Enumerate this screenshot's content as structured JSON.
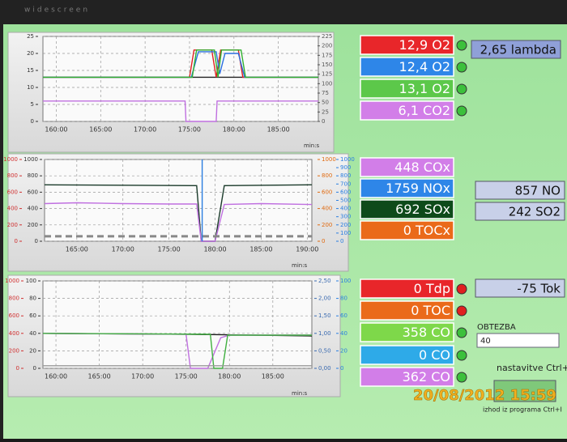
{
  "bezel_label": "widescreen",
  "charts": [
    {
      "x_label": "min:s",
      "xlim": [
        158.5,
        189.5
      ],
      "xticks": [
        {
          "value": 160,
          "label": "160:00"
        },
        {
          "value": 165,
          "label": "165:00"
        },
        {
          "value": 170,
          "label": "170:00"
        },
        {
          "value": 175,
          "label": "175:00"
        },
        {
          "value": 180,
          "label": "180:00"
        },
        {
          "value": 185,
          "label": "185:00"
        }
      ],
      "axes": [
        {
          "color": "#333333",
          "lim": [
            0,
            25
          ],
          "ticks": [
            0,
            5,
            10,
            15,
            20,
            25
          ]
        },
        {
          "color": "#555555",
          "lim": [
            0,
            225
          ],
          "ticks": [
            0,
            25,
            50,
            75,
            100,
            125,
            150,
            175,
            200,
            225
          ]
        }
      ],
      "series": [
        {
          "color": "#222222",
          "axis": 0,
          "x": [
            158.5,
            189.5
          ],
          "values": [
            13,
            13
          ]
        },
        {
          "color": "#e02020",
          "axis": 0,
          "x": [
            158.5,
            175,
            175.5,
            177.5,
            178,
            178.5,
            180.5,
            181,
            189.5
          ],
          "values": [
            13,
            13,
            21,
            21,
            13,
            21,
            21,
            13,
            13
          ]
        },
        {
          "color": "#2a6ee0",
          "axis": 0,
          "x": [
            158.5,
            175.2,
            176,
            178,
            178.4,
            179,
            180.5,
            181.2,
            189.5
          ],
          "values": [
            13,
            13,
            20.5,
            20.5,
            14,
            20,
            20,
            13,
            13
          ]
        },
        {
          "color": "#30b030",
          "axis": 0,
          "x": [
            158.5,
            175.3,
            175.8,
            177.8,
            178.2,
            178.6,
            180.8,
            181.3,
            189.5
          ],
          "values": [
            13,
            13,
            21,
            21,
            13,
            21,
            21,
            13,
            13
          ]
        },
        {
          "color": "#c070e0",
          "axis": 0,
          "x": [
            158.5,
            174.5,
            174.6,
            178,
            178.1,
            189.5
          ],
          "values": [
            6,
            6,
            0,
            0,
            6,
            6
          ]
        }
      ]
    },
    {
      "x_label": "min:s",
      "xlim": [
        161.5,
        190.5
      ],
      "xticks": [
        {
          "value": 165,
          "label": "165:00"
        },
        {
          "value": 170,
          "label": "170:00"
        },
        {
          "value": 175,
          "label": "175:00"
        },
        {
          "value": 180,
          "label": "180:00"
        },
        {
          "value": 185,
          "label": "185:00"
        },
        {
          "value": 190,
          "label": "190:00"
        }
      ],
      "axes": [
        {
          "color": "#d03030",
          "lim": [
            0,
            1000
          ],
          "ticks": [
            0,
            200,
            400,
            600,
            800,
            1000
          ]
        },
        {
          "color": "#333333",
          "lim": [
            0,
            1000
          ],
          "ticks": [
            0,
            200,
            400,
            600,
            800,
            1000
          ]
        },
        {
          "color": "#e06a10",
          "lim": [
            0,
            1000
          ],
          "ticks": [
            0,
            200,
            400,
            600,
            800,
            1000
          ]
        },
        {
          "color": "#2a7ee0",
          "lim": [
            0,
            1000
          ],
          "ticks": [
            0,
            100,
            200,
            300,
            400,
            500,
            600,
            700,
            800,
            900,
            1000
          ]
        }
      ],
      "series": [
        {
          "color": "#1a3a2a",
          "axis": 1,
          "x": [
            161.5,
            178,
            178.5,
            180,
            181,
            190.5
          ],
          "values": [
            690,
            680,
            0,
            0,
            680,
            690
          ]
        },
        {
          "color": "#c070e0",
          "axis": 1,
          "x": [
            161.5,
            165,
            170,
            175,
            178,
            178.5,
            180,
            181,
            185,
            190.5
          ],
          "values": [
            460,
            470,
            460,
            455,
            455,
            0,
            0,
            450,
            460,
            450
          ]
        },
        {
          "color": "#888888",
          "axis": 1,
          "dashed": true,
          "x": [
            161.5,
            190.5
          ],
          "values": [
            60,
            60
          ]
        },
        {
          "color": "#2a7ee0",
          "axis": 3,
          "x": [
            178.6,
            178.6
          ],
          "values": [
            0,
            1000
          ]
        }
      ]
    },
    {
      "x_label": "min:s",
      "xlim": [
        158.5,
        189.5
      ],
      "xticks": [
        {
          "value": 160,
          "label": "160:00"
        },
        {
          "value": 165,
          "label": "165:00"
        },
        {
          "value": 170,
          "label": "170:00"
        },
        {
          "value": 175,
          "label": "175:00"
        },
        {
          "value": 180,
          "label": "180:00"
        },
        {
          "value": 185,
          "label": "185:00"
        }
      ],
      "axes": [
        {
          "color": "#d03030",
          "lim": [
            0,
            1000
          ],
          "ticks": [
            0,
            200,
            400,
            600,
            800,
            1000
          ]
        },
        {
          "color": "#333333",
          "lim": [
            0,
            100
          ],
          "ticks": [
            0,
            20,
            40,
            60,
            80,
            100
          ]
        },
        {
          "color": "#3a6ab0",
          "lim": [
            0,
            2.5
          ],
          "ticks": [
            {
              "value": 0,
              "label": "0,00"
            },
            {
              "value": 0.5,
              "label": "0,50"
            },
            {
              "value": 1,
              "label": "1,00"
            },
            {
              "value": 1.5,
              "label": "1,50"
            },
            {
              "value": 2,
              "label": "2,00"
            },
            {
              "value": 2.5,
              "label": "2,50"
            }
          ]
        },
        {
          "color": "#2a7ee0",
          "lim": [
            0,
            100
          ],
          "ticks": [
            0,
            20,
            40,
            60,
            80,
            100
          ]
        }
      ],
      "series": [
        {
          "color": "#1a1a1a",
          "axis": 1,
          "x": [
            158.5,
            175,
            189.5
          ],
          "values": [
            40,
            39,
            37
          ]
        },
        {
          "color": "#c070e0",
          "axis": 1,
          "x": [
            158.5,
            175,
            175.5,
            177.5,
            179,
            180,
            189.5
          ],
          "values": [
            40,
            39,
            0,
            0,
            35,
            38,
            38
          ]
        },
        {
          "color": "#40b040",
          "axis": 1,
          "x": [
            158.5,
            177.8,
            178.2,
            179.2,
            179.8,
            189.5
          ],
          "values": [
            40,
            39,
            0,
            0,
            38,
            38
          ]
        },
        {
          "color": "#999999",
          "axis": 1,
          "x": [
            158.5,
            189.5
          ],
          "values": [
            3,
            3
          ]
        }
      ]
    }
  ],
  "readings": [
    {
      "text": "12,9 O2",
      "color": "#e8262a",
      "indicator": "#3cc03c"
    },
    {
      "text": "12,4 O2",
      "color": "#2e86e8",
      "indicator": "#3cc03c"
    },
    {
      "text": "13,1 O2",
      "color": "#5cc84a",
      "indicator": "#3cc03c"
    },
    {
      "text": "6,1 CO2",
      "color": "#d27ee8",
      "indicator": "#3cc03c"
    },
    {
      "text": "448 COx",
      "color": "#d27ee8"
    },
    {
      "text": "1759 NOx",
      "color": "#2e86e8"
    },
    {
      "text": "692 SOx",
      "color": "#0e4a1a"
    },
    {
      "text": "0 TOCx",
      "color": "#ea6a1a"
    },
    {
      "text": "0 Tdp",
      "color": "#e8262a",
      "indicator": "#e02020"
    },
    {
      "text": "0 TOC",
      "color": "#ea6a1a",
      "indicator": "#e02020"
    },
    {
      "text": "358 CO",
      "color": "#7ed84a",
      "indicator": "#3cc03c"
    },
    {
      "text": "0 CO",
      "color": "#2eaae8",
      "indicator": "#3cc03c"
    },
    {
      "text": "362 CO",
      "color": "#d27ee8",
      "indicator": "#3cc03c"
    }
  ],
  "side_boxes": [
    "2,65 lambda",
    "857 NO",
    "242 SO2",
    "-75 Tok"
  ],
  "load_label": "OBTEZBA",
  "load_value": "40",
  "settings_label": "nastavitve Ctrl+I",
  "exit_label": "izhod iz programa Ctrl+I",
  "timestamp": "20/08/2012 15:59"
}
